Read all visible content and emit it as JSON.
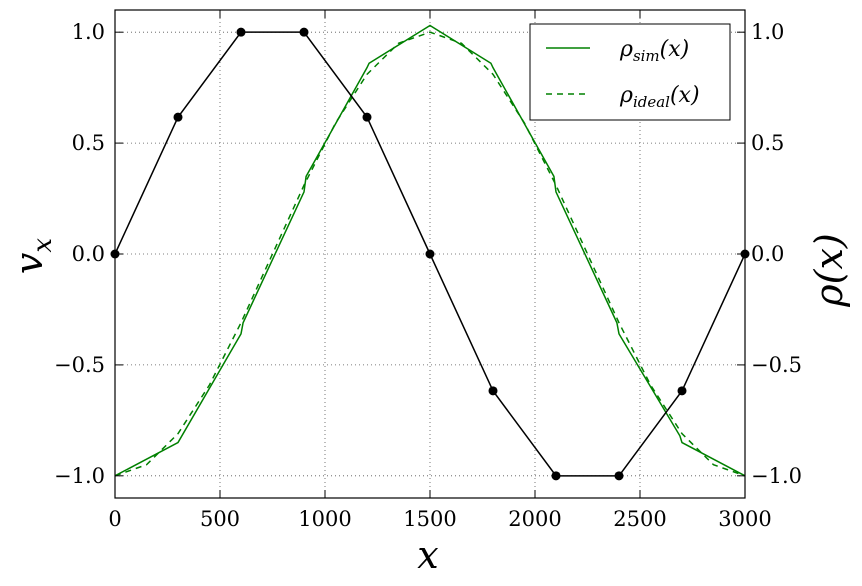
{
  "chart_data": {
    "type": "line",
    "xlabel": "x",
    "ylabel_left": "v_x",
    "ylabel_right": "ρ(x)",
    "xlim": [
      0,
      3000
    ],
    "ylim": [
      -1.1,
      1.1
    ],
    "grid": true,
    "legend_position": "top-right",
    "x_ticks": [
      "0",
      "500",
      "1000",
      "1500",
      "2000",
      "2500",
      "3000"
    ],
    "y_ticks": [
      "−1.0",
      "−0.5",
      "0.0",
      "0.5",
      "1.0"
    ],
    "y_tick_values": [
      -1.0,
      -0.5,
      0.0,
      0.5,
      1.0
    ],
    "x_tick_values": [
      0,
      500,
      1000,
      1500,
      2000,
      2500,
      3000
    ],
    "series": [
      {
        "key": "vx",
        "color": "#000000",
        "style": "solid",
        "markers": true,
        "x": [
          0,
          300,
          600,
          900,
          1200,
          1500,
          1800,
          2100,
          2400,
          2700,
          3000
        ],
        "y": [
          0.0,
          0.617,
          1.0,
          1.0,
          0.617,
          0.0,
          -0.617,
          -1.0,
          -1.0,
          -0.617,
          0.0
        ]
      },
      {
        "key": "rho_sim",
        "name_base": "ρ",
        "name_sub": "sim",
        "name_tail": "(x)",
        "color": "#008000",
        "style": "solid",
        "markers": false,
        "x": [
          0,
          300,
          600,
          610,
          900,
          910,
          1200,
          1210,
          1500,
          1790,
          1800,
          2090,
          2100,
          2390,
          2400,
          2690,
          2700,
          3000
        ],
        "y": [
          -1.0,
          -0.85,
          -0.36,
          -0.31,
          0.28,
          0.35,
          0.84,
          0.86,
          1.03,
          0.86,
          0.84,
          0.35,
          0.28,
          -0.31,
          -0.36,
          -0.82,
          -0.85,
          -1.0
        ]
      },
      {
        "key": "rho_ideal",
        "name_base": "ρ",
        "name_sub": "ideal",
        "name_tail": "(x)",
        "color": "#008000",
        "style": "dashed",
        "markers": false,
        "x": [
          0,
          150,
          300,
          450,
          600,
          750,
          900,
          1050,
          1200,
          1350,
          1500,
          1650,
          1800,
          1950,
          2100,
          2250,
          2400,
          2550,
          2700,
          2850,
          3000
        ],
        "y": [
          -1.0,
          -0.95,
          -0.81,
          -0.59,
          -0.31,
          0.0,
          0.31,
          0.59,
          0.81,
          0.95,
          1.0,
          0.95,
          0.81,
          0.59,
          0.31,
          0.0,
          -0.31,
          -0.59,
          -0.81,
          -0.95,
          -1.0
        ]
      }
    ]
  }
}
